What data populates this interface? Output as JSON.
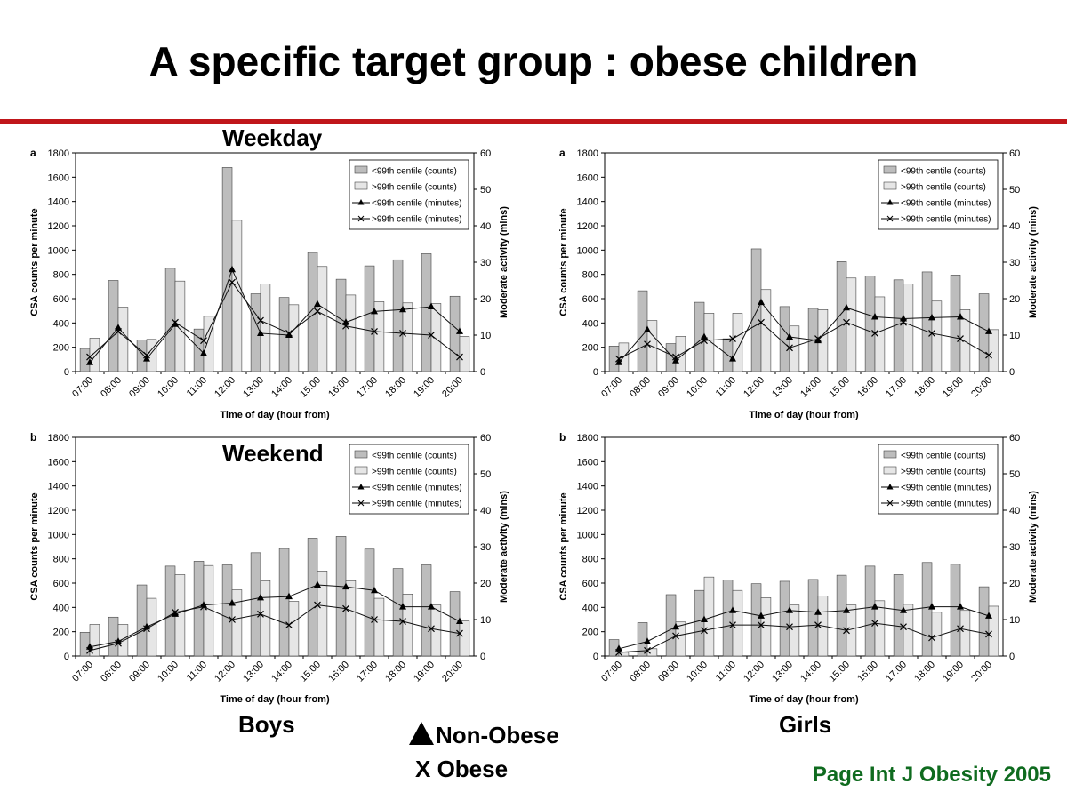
{
  "slide": {
    "title": "A specific target group : obese children",
    "weekday_label": "Weekday",
    "weekend_label": "Weekend",
    "boys_label": "Boys",
    "girls_label": "Girls",
    "legend_non_obese": "Non-Obese",
    "legend_obese": "X Obese",
    "citation": "Page Int J Obesity 2005",
    "accent_color": "#c0161a",
    "citation_color": "#0f6b1f"
  },
  "chart_data": [
    {
      "id": "boys-weekday",
      "panel_letter": "a",
      "type": "bar+line",
      "categories": [
        "07:00",
        "08:00",
        "09:00",
        "10:00",
        "11:00",
        "12:00",
        "13:00",
        "14:00",
        "15:00",
        "16:00",
        "17:00",
        "18:00",
        "19:00",
        "20:00"
      ],
      "xlabel": "Time of day (hour from)",
      "ylabel": "CSA counts per minute",
      "y2label": "Moderate activity (mins)",
      "ylim": [
        0,
        1800
      ],
      "y2lim": [
        0,
        60
      ],
      "legend_position": "top-right",
      "series": [
        {
          "name": "<99th centile (counts)",
          "kind": "bar",
          "axis": "left",
          "color": "#bdbdbd",
          "values": [
            190,
            750,
            260,
            850,
            350,
            1680,
            640,
            610,
            980,
            760,
            870,
            920,
            970,
            620
          ]
        },
        {
          "name": ">99th centile (counts)",
          "kind": "bar",
          "axis": "left",
          "color": "#e6e6e6",
          "values": [
            275,
            530,
            265,
            745,
            455,
            1245,
            720,
            550,
            865,
            630,
            575,
            565,
            560,
            290
          ]
        },
        {
          "name": "<99th centile (minutes)",
          "kind": "line",
          "marker": "triangle",
          "axis": "right",
          "values": [
            2.5,
            12,
            3.5,
            13,
            5,
            28,
            10.5,
            10,
            18.5,
            13.5,
            16.5,
            17,
            17.8,
            11
          ]
        },
        {
          "name": ">99th centile (minutes)",
          "kind": "line",
          "marker": "x",
          "axis": "right",
          "values": [
            4,
            11,
            4.5,
            13.5,
            8.5,
            24.5,
            14,
            10.5,
            16.5,
            12.5,
            11,
            10.5,
            10,
            4
          ]
        }
      ]
    },
    {
      "id": "girls-weekday",
      "panel_letter": "a",
      "type": "bar+line",
      "categories": [
        "07:00",
        "08:00",
        "09:00",
        "10:00",
        "11:00",
        "12:00",
        "13:00",
        "14:00",
        "15:00",
        "16:00",
        "17:00",
        "18:00",
        "19:00",
        "20:00"
      ],
      "xlabel": "Time of day (hour from)",
      "ylabel": "CSA counts per minute",
      "y2label": "Moderate activity (mins)",
      "ylim": [
        0,
        1800
      ],
      "y2lim": [
        0,
        60
      ],
      "legend_position": "top-right",
      "series": [
        {
          "name": "<99th centile (counts)",
          "kind": "bar",
          "axis": "left",
          "color": "#bdbdbd",
          "values": [
            210,
            665,
            230,
            570,
            270,
            1010,
            535,
            520,
            905,
            785,
            755,
            820,
            795,
            640
          ]
        },
        {
          "name": ">99th centile (counts)",
          "kind": "bar",
          "axis": "left",
          "color": "#e6e6e6",
          "values": [
            235,
            420,
            290,
            480,
            480,
            675,
            375,
            510,
            770,
            615,
            720,
            580,
            510,
            345
          ]
        },
        {
          "name": "<99th centile (minutes)",
          "kind": "line",
          "marker": "triangle",
          "axis": "right",
          "values": [
            2.5,
            11.5,
            3,
            9.5,
            3.5,
            19,
            9.5,
            8.5,
            17.5,
            15,
            14.5,
            14.8,
            15,
            11
          ]
        },
        {
          "name": ">99th centile (minutes)",
          "kind": "line",
          "marker": "x",
          "axis": "right",
          "values": [
            3.5,
            7.5,
            4,
            8.5,
            9,
            13.5,
            6.5,
            9,
            13.5,
            10.5,
            13.5,
            10.5,
            9,
            4.5
          ]
        }
      ]
    },
    {
      "id": "boys-weekend",
      "panel_letter": "b",
      "type": "bar+line",
      "categories": [
        "07:00",
        "08:00",
        "09:00",
        "10:00",
        "11:00",
        "12:00",
        "13:00",
        "14:00",
        "15:00",
        "16:00",
        "17:00",
        "18:00",
        "19:00",
        "20:00"
      ],
      "xlabel": "Time of day (hour from)",
      "ylabel": "CSA counts per minute",
      "y2label": "Moderate activity (mins)",
      "ylim": [
        0,
        1800
      ],
      "y2lim": [
        0,
        60
      ],
      "legend_position": "top-right",
      "series": [
        {
          "name": "<99th centile (counts)",
          "kind": "bar",
          "axis": "left",
          "color": "#bdbdbd",
          "values": [
            195,
            320,
            585,
            740,
            780,
            750,
            850,
            885,
            970,
            985,
            880,
            720,
            750,
            530
          ]
        },
        {
          "name": ">99th centile (counts)",
          "kind": "bar",
          "axis": "left",
          "color": "#e6e6e6",
          "values": [
            260,
            260,
            475,
            670,
            745,
            545,
            620,
            450,
            700,
            620,
            475,
            510,
            420,
            290
          ]
        },
        {
          "name": "<99th centile (minutes)",
          "kind": "line",
          "marker": "triangle",
          "axis": "right",
          "values": [
            2.5,
            4,
            8,
            11.5,
            14,
            14.5,
            16,
            16.3,
            19.5,
            19,
            18,
            13.5,
            13.5,
            9.5
          ]
        },
        {
          "name": ">99th centile (minutes)",
          "kind": "line",
          "marker": "x",
          "axis": "right",
          "values": [
            1.5,
            3.5,
            7.5,
            12,
            13.5,
            10,
            11.5,
            8.5,
            14,
            13,
            10,
            9.5,
            7.5,
            6.2
          ]
        }
      ]
    },
    {
      "id": "girls-weekend",
      "panel_letter": "b",
      "type": "bar+line",
      "categories": [
        "07:00",
        "08:00",
        "09:00",
        "10:00",
        "11:00",
        "12:00",
        "13:00",
        "14:00",
        "15:00",
        "16:00",
        "17:00",
        "18:00",
        "19:00",
        "20:00"
      ],
      "xlabel": "Time of day (hour from)",
      "ylabel": "CSA counts per minute",
      "y2label": "Moderate activity (mins)",
      "ylim": [
        0,
        1800
      ],
      "y2lim": [
        0,
        60
      ],
      "legend_position": "top-right",
      "series": [
        {
          "name": "<99th centile (counts)",
          "kind": "bar",
          "axis": "left",
          "color": "#bdbdbd",
          "values": [
            135,
            275,
            505,
            540,
            625,
            595,
            615,
            630,
            665,
            740,
            670,
            770,
            755,
            570
          ]
        },
        {
          "name": ">99th centile (counts)",
          "kind": "bar",
          "axis": "left",
          "color": "#e6e6e6",
          "values": [
            30,
            60,
            280,
            650,
            540,
            480,
            420,
            495,
            420,
            455,
            425,
            360,
            375,
            410
          ]
        },
        {
          "name": "<99th centile (minutes)",
          "kind": "line",
          "marker": "triangle",
          "axis": "right",
          "values": [
            2,
            4,
            8,
            10,
            12.5,
            11,
            12.5,
            12,
            12.5,
            13.5,
            12.5,
            13.5,
            13.5,
            11
          ]
        },
        {
          "name": ">99th centile (minutes)",
          "kind": "line",
          "marker": "x",
          "axis": "right",
          "values": [
            1,
            1.5,
            5.5,
            7,
            8.5,
            8.5,
            8,
            8.5,
            7,
            9,
            8,
            5,
            7.5,
            6
          ]
        }
      ]
    }
  ]
}
